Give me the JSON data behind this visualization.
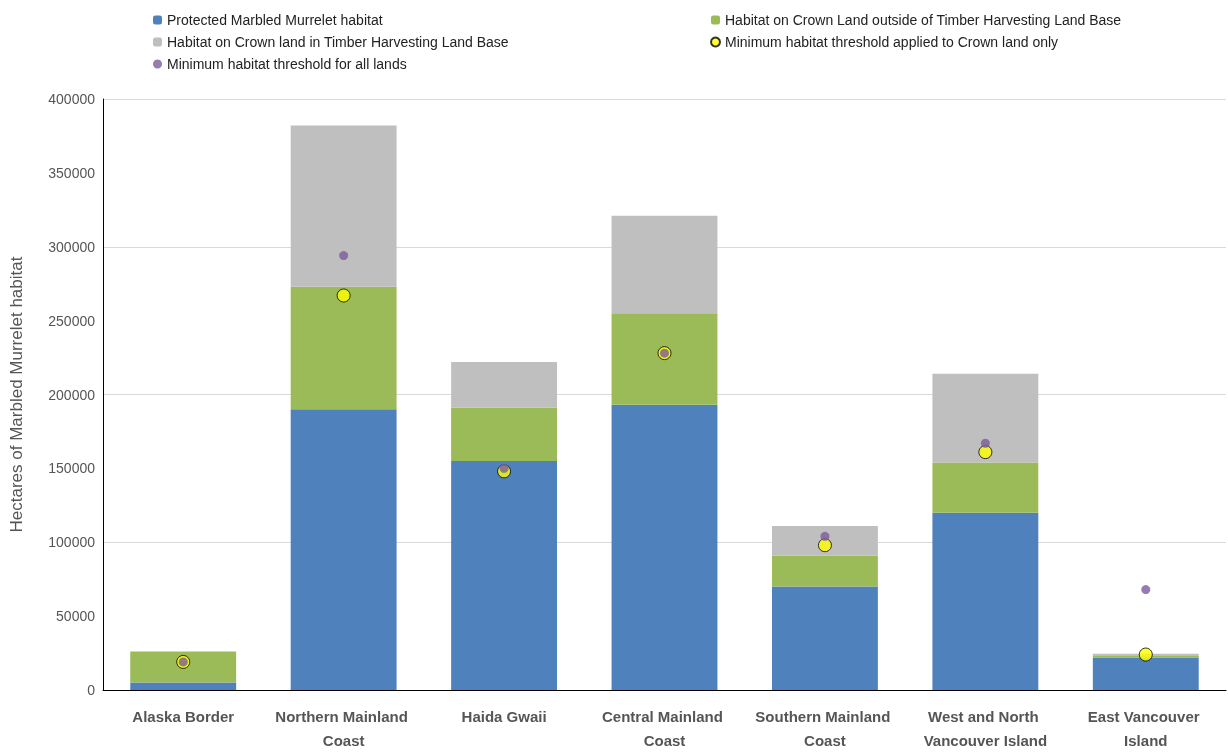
{
  "chart_data": {
    "type": "bar",
    "stacked": true,
    "ylabel": "Hectares of Marbled Murrelet habitat",
    "categories": [
      "Alaska Border",
      "Northern Mainland Coast",
      "Haida Gwaii",
      "Central Mainland Coast",
      "Southern Mainland Coast",
      "West and North Vancouver Island",
      "East Vancouver Island"
    ],
    "series": [
      {
        "name": "Protected Marbled Murrelet habitat",
        "color": "#4f81bd",
        "values": [
          5000,
          190000,
          155000,
          193000,
          70000,
          120000,
          22000
        ]
      },
      {
        "name": "Habitat on Crown Land outside of Timber Harvesting Land Base",
        "color": "#9bbb59",
        "values": [
          21000,
          83000,
          36000,
          62000,
          21000,
          34000,
          1000
        ]
      },
      {
        "name": "Habitat on Crown land in Timber Harvesting Land Base",
        "color": "#bfbfbf",
        "values": [
          0,
          109000,
          31000,
          66000,
          20000,
          60000,
          1500
        ]
      },
      {
        "name": "Minimum habitat threshold applied to Crown land only",
        "type": "scatter",
        "marker": "circle",
        "color": "#ffff00",
        "values": [
          19000,
          267000,
          148000,
          228000,
          98000,
          161000,
          24000
        ]
      },
      {
        "name": "Minimum habitat threshold for all lands",
        "type": "scatter",
        "marker": "circle",
        "color": "#7a5c9e",
        "values": [
          19000,
          294000,
          150000,
          228000,
          104000,
          167000,
          68000
        ]
      }
    ],
    "ylim": [
      0,
      400000
    ],
    "yticks": [
      0,
      50000,
      100000,
      150000,
      200000,
      250000,
      300000,
      350000,
      400000
    ],
    "grid": "y",
    "legend": "top"
  }
}
